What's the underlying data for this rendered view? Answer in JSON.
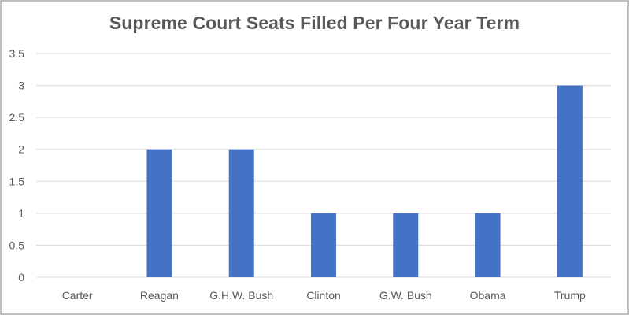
{
  "chart_data": {
    "type": "bar",
    "title": "Supreme Court Seats Filled Per Four Year Term",
    "xlabel": "",
    "ylabel": "",
    "categories": [
      "Carter",
      "Reagan",
      "G.H.W. Bush",
      "Clinton",
      "G.W. Bush",
      "Obama",
      "Trump"
    ],
    "values": [
      0,
      2,
      2,
      1,
      1,
      1,
      3
    ],
    "ylim": [
      0,
      3.5
    ],
    "yticks": [
      "0",
      "0.5",
      "1",
      "1.5",
      "2",
      "2.5",
      "3",
      "3.5"
    ],
    "grid": true,
    "legend": "none",
    "bar_color": "#4472c4",
    "grid_color": "#d9d9d9",
    "text_color": "#595959"
  }
}
